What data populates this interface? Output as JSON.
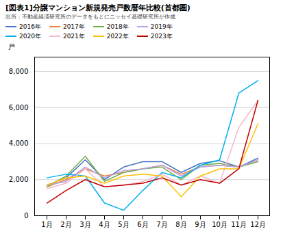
{
  "chart_data": {
    "type": "line",
    "title": "[図表1]分譲マンション新規発売戸数暦年比較(首都圏)",
    "subtitle": "出所：不動産経済研究所のデータをもとにニッセイ基礎研究所が作成",
    "ylabel": "戸",
    "categories": [
      "1月",
      "2月",
      "3月",
      "4月",
      "5月",
      "6月",
      "7月",
      "8月",
      "9月",
      "10月",
      "11月",
      "12月"
    ],
    "series": [
      {
        "name": "2016年",
        "color": "#4472c4",
        "values": [
          1700,
          2100,
          3100,
          2000,
          2700,
          3000,
          3000,
          2400,
          2900,
          3050,
          2700,
          3200
        ]
      },
      {
        "name": "2017年",
        "color": "#ed7d31",
        "values": [
          1600,
          2000,
          2600,
          2200,
          2400,
          2600,
          2800,
          2300,
          2700,
          2800,
          2700,
          3100
        ]
      },
      {
        "name": "2018年",
        "color": "#70ad47",
        "values": [
          1600,
          2200,
          3300,
          1900,
          2400,
          2600,
          2700,
          2000,
          2800,
          2900,
          2700,
          3000
        ]
      },
      {
        "name": "2019年",
        "color": "#b4a0e8",
        "values": [
          1700,
          1900,
          2700,
          2100,
          2500,
          2600,
          2800,
          2200,
          2700,
          2800,
          2700,
          3100
        ]
      },
      {
        "name": "2020年",
        "color": "#00b0f0",
        "values": [
          2100,
          2300,
          2200,
          700,
          300,
          1400,
          2400,
          2100,
          2800,
          3100,
          6800,
          7500
        ]
      },
      {
        "name": "2021年",
        "color": "#f4b8c9",
        "values": [
          1500,
          1800,
          2600,
          1600,
          1700,
          1900,
          2300,
          1700,
          2200,
          1800,
          4900,
          6400
        ]
      },
      {
        "name": "2022年",
        "color": "#ffc000",
        "values": [
          1700,
          2100,
          2200,
          1800,
          2200,
          2300,
          2200,
          1050,
          2200,
          2600,
          2600,
          5100
        ]
      },
      {
        "name": "2023年",
        "color": "#c00000",
        "values": [
          700,
          1400,
          2000,
          1600,
          1700,
          1800,
          2100,
          1700,
          2000,
          1800,
          2600,
          6400
        ]
      }
    ],
    "ylim": [
      0,
      8800
    ],
    "yticks": [
      0,
      {
        "value": 2000,
        "label": "2,000"
      },
      {
        "value": 4000,
        "label": "4,000"
      },
      {
        "value": 6000,
        "label": "6,000"
      },
      {
        "value": 8000,
        "label": "8,000"
      }
    ],
    "grid": true,
    "legend": "top"
  }
}
